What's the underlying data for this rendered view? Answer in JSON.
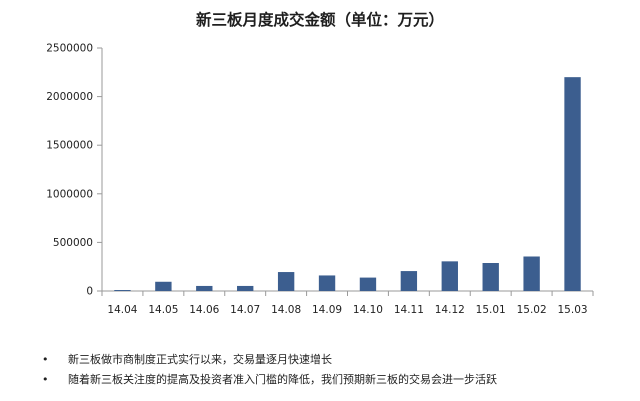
{
  "chart_data": {
    "type": "bar",
    "title": "新三板月度成交金额（单位：万元）",
    "categories": [
      "14.04",
      "14.05",
      "14.06",
      "14.07",
      "14.08",
      "14.09",
      "14.10",
      "14.11",
      "14.12",
      "15.01",
      "15.02",
      "15.03"
    ],
    "values": [
      10000,
      95000,
      52000,
      52000,
      195000,
      160000,
      138000,
      205000,
      305000,
      288000,
      355000,
      2200000
    ],
    "ylim": [
      0,
      2500000
    ],
    "yticks": [
      0,
      500000,
      1000000,
      1500000,
      2000000,
      2500000
    ],
    "ytick_labels": [
      "0",
      "500000",
      "1000000",
      "1500000",
      "2000000",
      "2500000"
    ],
    "grid": false,
    "legend": "none",
    "bar_color": "#3c5e8f",
    "axis_color": "#9a9a9a"
  },
  "notes": [
    "新三板做市商制度正式实行以来，交易量逐月快速增长",
    "随着新三板关注度的提高及投资者准入门槛的降低，我们预期新三板的交易会进一步活跃"
  ]
}
